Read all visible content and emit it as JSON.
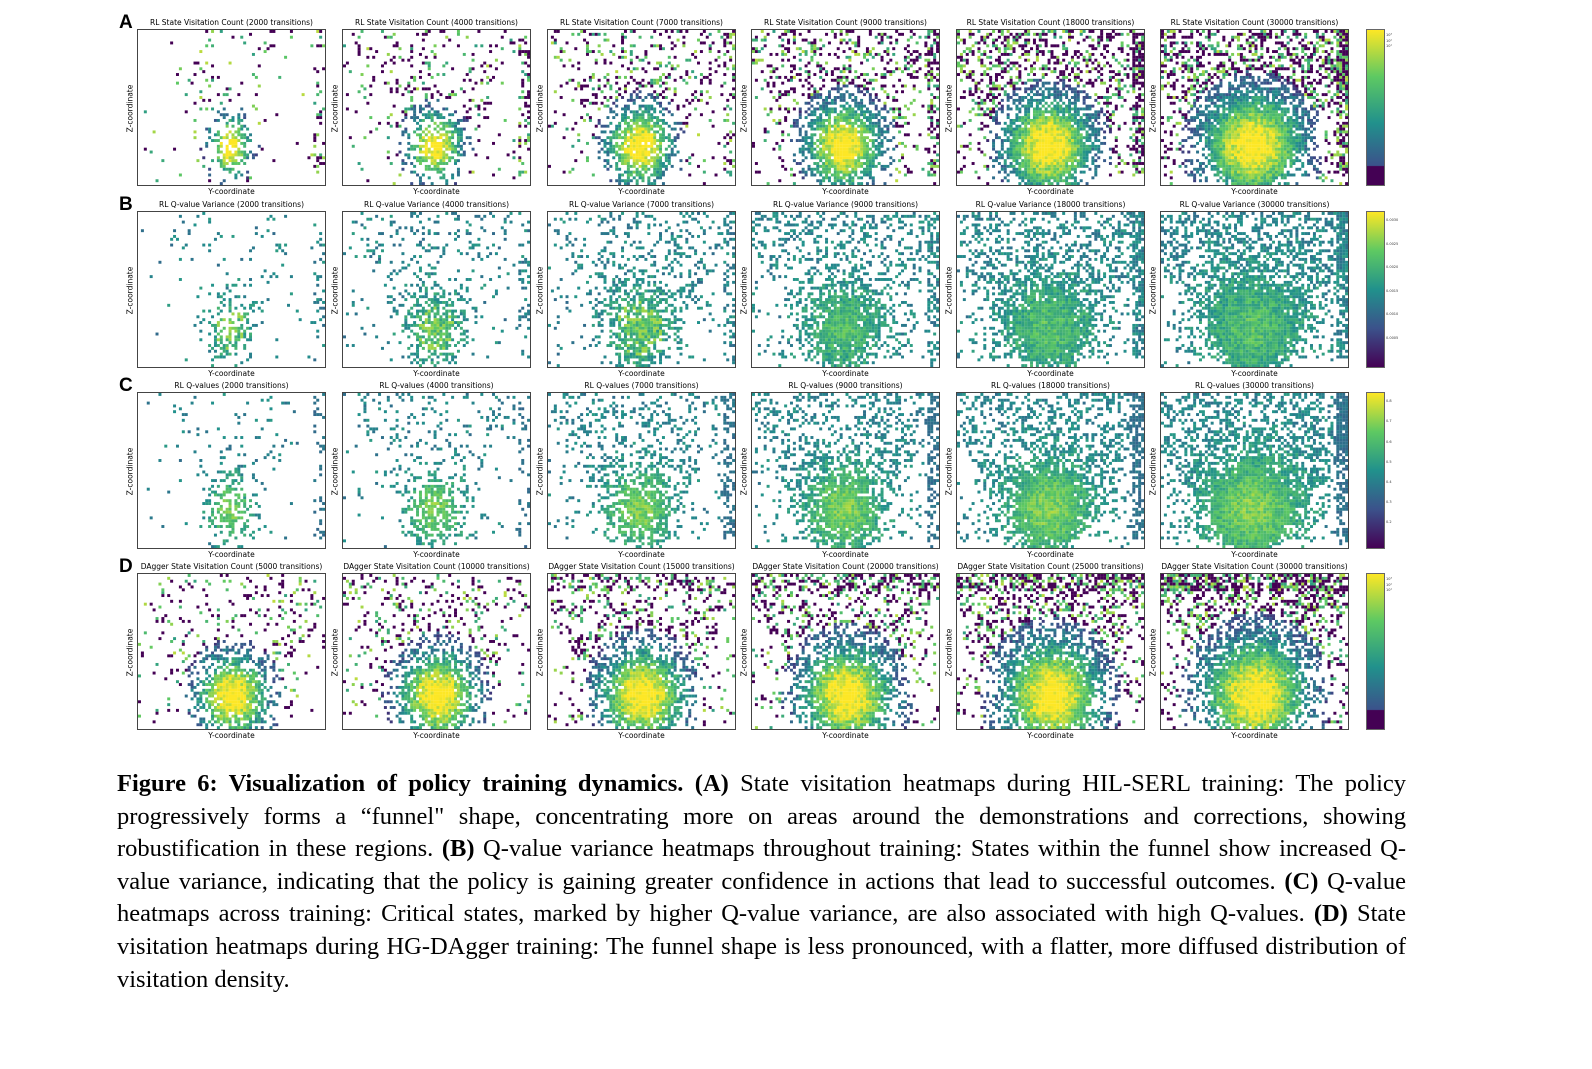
{
  "figure": {
    "rows": [
      {
        "letter": "A",
        "kind": "visit",
        "cbar": {
          "colors": [
            "#440154",
            "#3b528b",
            "#21918c",
            "#5ec962",
            "#fde725"
          ],
          "ticks": [
            "10³",
            "10²",
            "10¹"
          ]
        },
        "titles": [
          "RL State Visitation Count (2000 transitions)",
          "RL State Visitation Count (4000 transitions)",
          "RL State Visitation Count (7000 transitions)",
          "RL State Visitation Count (9000 transitions)",
          "RL State Visitation Count (18000 transitions)",
          "RL State Visitation Count (30000 transitions)"
        ]
      },
      {
        "letter": "B",
        "kind": "var",
        "cbar": {
          "colors": [
            "#440154",
            "#3b528b",
            "#21918c",
            "#5ec962",
            "#fde725"
          ],
          "ticks": [
            "0.0030",
            "0.0025",
            "0.0020",
            "0.0015",
            "0.0010",
            "0.0005"
          ]
        },
        "titles": [
          "RL Q-value Variance (2000 transitions)",
          "RL Q-value Variance (4000 transitions)",
          "RL Q-value Variance (7000 transitions)",
          "RL Q-value Variance (9000 transitions)",
          "RL Q-value Variance (18000 transitions)",
          "RL Q-value Variance (30000 transitions)"
        ]
      },
      {
        "letter": "C",
        "kind": "q",
        "cbar": {
          "colors": [
            "#440154",
            "#3b528b",
            "#21918c",
            "#5ec962",
            "#fde725"
          ],
          "ticks": [
            "0.8",
            "0.7",
            "0.6",
            "0.5",
            "0.4",
            "0.3",
            "0.2"
          ]
        },
        "titles": [
          "RL Q-values (2000 transitions)",
          "RL Q-values (4000 transitions)",
          "RL Q-values (7000 transitions)",
          "RL Q-values (9000 transitions)",
          "RL Q-values (18000 transitions)",
          "RL Q-values (30000 transitions)"
        ]
      },
      {
        "letter": "D",
        "kind": "dagger",
        "cbar": {
          "colors": [
            "#440154",
            "#3b528b",
            "#21918c",
            "#5ec962",
            "#fde725"
          ],
          "ticks": [
            "10³",
            "10²",
            "10¹"
          ]
        },
        "titles": [
          "DAgger State Visitation Count (5000 transitions)",
          "DAgger State Visitation Count (10000 transitions)",
          "DAgger State Visitation Count (15000 transitions)",
          "DAgger State Visitation Count (20000 transitions)",
          "DAgger State Visitation Count (25000 transitions)",
          "DAgger State Visitation Count (30000 transitions)"
        ]
      }
    ],
    "xlabel": "Y-coordinate",
    "ylabel": "Z-coordinate"
  },
  "caption": {
    "fig_label": "Figure 6: Visualization of policy training dynamics.",
    "a_label": "(A)",
    "a_text": " State visitation heatmaps during HIL-SERL training: The policy progressively forms a “funnel\" shape, concentrating more on areas around the demonstrations and corrections, showing robustification in these regions. ",
    "b_label": "(B)",
    "b_text": " Q-value variance heatmaps throughout training: States within the funnel show increased Q-value variance, indicating that the policy is gaining greater confidence in actions that lead to successful outcomes. ",
    "c_label": "(C)",
    "c_text": " Q-value heatmaps across training: Critical states, marked by higher Q-value variance, are also associated with high Q-values. ",
    "d_label": "(D)",
    "d_text": " State visitation heatmaps during HG-DAgger training: The funnel shape is less pronounced, with a flatter, more diffused distribution of visitation density."
  }
}
